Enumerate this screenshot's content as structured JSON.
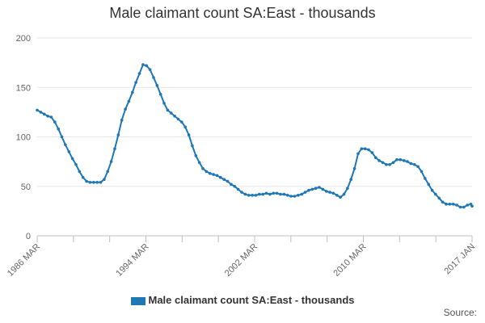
{
  "chart_data": {
    "type": "line",
    "title": "Male claimant count SA:East - thousands",
    "xlabel": "",
    "ylabel": "",
    "ylim": [
      0,
      200
    ],
    "yticks": [
      0,
      50,
      100,
      150,
      200
    ],
    "x_tick_labels": [
      "1986 MAR",
      "1994 MAR",
      "2002 MAR",
      "2010 MAR",
      "2017 JAN"
    ],
    "grid": true,
    "legend_position": "bottom",
    "color": "#1f77b4",
    "series": [
      {
        "name": "Male claimant count SA:East - thousands",
        "points": [
          [
            "1986-03",
            127
          ],
          [
            "1986-06",
            125
          ],
          [
            "1986-09",
            123
          ],
          [
            "1986-12",
            121
          ],
          [
            "1987-03",
            120
          ],
          [
            "1987-06",
            115
          ],
          [
            "1987-09",
            108
          ],
          [
            "1987-12",
            100
          ],
          [
            "1988-03",
            92
          ],
          [
            "1988-06",
            85
          ],
          [
            "1988-09",
            78
          ],
          [
            "1988-12",
            72
          ],
          [
            "1989-03",
            65
          ],
          [
            "1989-06",
            59
          ],
          [
            "1989-09",
            55
          ],
          [
            "1989-12",
            54
          ],
          [
            "1990-03",
            54
          ],
          [
            "1990-06",
            54
          ],
          [
            "1990-09",
            54
          ],
          [
            "1990-12",
            57
          ],
          [
            "1991-03",
            65
          ],
          [
            "1991-06",
            75
          ],
          [
            "1991-09",
            88
          ],
          [
            "1991-12",
            102
          ],
          [
            "1992-03",
            117
          ],
          [
            "1992-06",
            128
          ],
          [
            "1992-09",
            136
          ],
          [
            "1992-12",
            145
          ],
          [
            "1993-03",
            155
          ],
          [
            "1993-06",
            164
          ],
          [
            "1993-09",
            173
          ],
          [
            "1993-12",
            172
          ],
          [
            "1994-03",
            168
          ],
          [
            "1994-06",
            160
          ],
          [
            "1994-09",
            152
          ],
          [
            "1994-12",
            143
          ],
          [
            "1995-03",
            134
          ],
          [
            "1995-06",
            127
          ],
          [
            "1995-09",
            124
          ],
          [
            "1995-12",
            121
          ],
          [
            "1996-03",
            118
          ],
          [
            "1996-06",
            115
          ],
          [
            "1996-09",
            110
          ],
          [
            "1996-12",
            102
          ],
          [
            "1997-03",
            91
          ],
          [
            "1997-06",
            81
          ],
          [
            "1997-09",
            74
          ],
          [
            "1997-12",
            68
          ],
          [
            "1998-03",
            65
          ],
          [
            "1998-06",
            63
          ],
          [
            "1998-09",
            62
          ],
          [
            "1998-12",
            61
          ],
          [
            "1999-03",
            59
          ],
          [
            "1999-06",
            57
          ],
          [
            "1999-09",
            55
          ],
          [
            "1999-12",
            52
          ],
          [
            "2000-03",
            50
          ],
          [
            "2000-06",
            47
          ],
          [
            "2000-09",
            44
          ],
          [
            "2000-12",
            42
          ],
          [
            "2001-03",
            41
          ],
          [
            "2001-06",
            41
          ],
          [
            "2001-09",
            41
          ],
          [
            "2001-12",
            42
          ],
          [
            "2002-03",
            42
          ],
          [
            "2002-06",
            43
          ],
          [
            "2002-09",
            42
          ],
          [
            "2002-12",
            43
          ],
          [
            "2003-03",
            43
          ],
          [
            "2003-06",
            42
          ],
          [
            "2003-09",
            42
          ],
          [
            "2003-12",
            41
          ],
          [
            "2004-03",
            40
          ],
          [
            "2004-06",
            40
          ],
          [
            "2004-09",
            41
          ],
          [
            "2004-12",
            42
          ],
          [
            "2005-03",
            44
          ],
          [
            "2005-06",
            46
          ],
          [
            "2005-09",
            47
          ],
          [
            "2005-12",
            48
          ],
          [
            "2006-03",
            49
          ],
          [
            "2006-06",
            47
          ],
          [
            "2006-09",
            45
          ],
          [
            "2006-12",
            44
          ],
          [
            "2007-03",
            43
          ],
          [
            "2007-06",
            41
          ],
          [
            "2007-09",
            39
          ],
          [
            "2007-12",
            42
          ],
          [
            "2008-03",
            48
          ],
          [
            "2008-06",
            57
          ],
          [
            "2008-09",
            68
          ],
          [
            "2008-12",
            83
          ],
          [
            "2009-03",
            88
          ],
          [
            "2009-06",
            88
          ],
          [
            "2009-09",
            87
          ],
          [
            "2009-12",
            84
          ],
          [
            "2010-03",
            79
          ],
          [
            "2010-06",
            76
          ],
          [
            "2010-09",
            74
          ],
          [
            "2010-12",
            72
          ],
          [
            "2011-03",
            72
          ],
          [
            "2011-06",
            74
          ],
          [
            "2011-09",
            77
          ],
          [
            "2011-12",
            77
          ],
          [
            "2012-03",
            76
          ],
          [
            "2012-06",
            75
          ],
          [
            "2012-09",
            73
          ],
          [
            "2012-12",
            72
          ],
          [
            "2013-03",
            70
          ],
          [
            "2013-06",
            65
          ],
          [
            "2013-09",
            58
          ],
          [
            "2013-12",
            52
          ],
          [
            "2014-03",
            46
          ],
          [
            "2014-06",
            42
          ],
          [
            "2014-09",
            38
          ],
          [
            "2014-12",
            34
          ],
          [
            "2015-03",
            32
          ],
          [
            "2015-06",
            32
          ],
          [
            "2015-09",
            32
          ],
          [
            "2015-12",
            31
          ],
          [
            "2016-03",
            29
          ],
          [
            "2016-06",
            29
          ],
          [
            "2016-09",
            31
          ],
          [
            "2016-12",
            32
          ],
          [
            "2017-01",
            30
          ]
        ]
      }
    ]
  },
  "source_label": "Source:"
}
